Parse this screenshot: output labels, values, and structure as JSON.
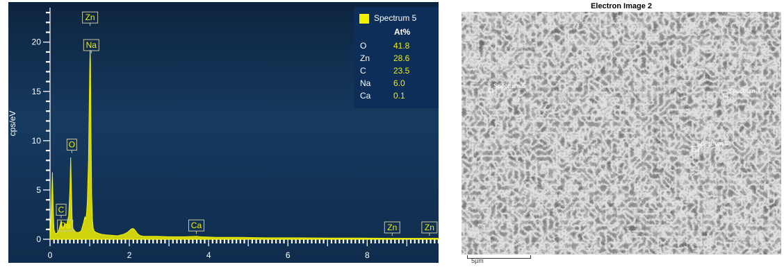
{
  "chart_data": [
    {
      "type": "line",
      "title": "",
      "xlabel": "",
      "ylabel": "cps/eV",
      "xlim": [
        0,
        9.8
      ],
      "ylim": [
        0,
        23.5
      ],
      "x_ticks": [
        0,
        2,
        4,
        6,
        8
      ],
      "y_ticks": [
        0,
        5,
        10,
        15,
        20
      ],
      "grid": false,
      "legend_position": "top-right",
      "series": [
        {
          "name": "Spectrum 5",
          "color": "#f0f000",
          "x": [
            0.0,
            0.03,
            0.06,
            0.08,
            0.1,
            0.13,
            0.17,
            0.22,
            0.26,
            0.28,
            0.3,
            0.33,
            0.37,
            0.42,
            0.47,
            0.5,
            0.52,
            0.54,
            0.56,
            0.58,
            0.61,
            0.66,
            0.72,
            0.78,
            0.84,
            0.88,
            0.9,
            0.92,
            0.94,
            0.97,
            1.0,
            1.01,
            1.02,
            1.035,
            1.05,
            1.07,
            1.09,
            1.12,
            1.16,
            1.22,
            1.3,
            1.4,
            1.55,
            1.7,
            1.85,
            1.95,
            2.05,
            2.1,
            2.15,
            2.2,
            2.26,
            2.35,
            2.5,
            2.7,
            3.0,
            3.4,
            3.69,
            3.8,
            4.2,
            4.8,
            5.5,
            6.2,
            7.0,
            7.8,
            8.6,
            9.2,
            9.8
          ],
          "y": [
            0.0,
            3.0,
            6.8,
            3.0,
            1.0,
            0.6,
            0.6,
            0.9,
            1.5,
            1.9,
            1.4,
            1.1,
            1.6,
            1.5,
            2.4,
            5.0,
            8.3,
            5.0,
            1.8,
            1.1,
            0.9,
            0.7,
            0.7,
            0.8,
            1.6,
            2.3,
            2.0,
            2.6,
            3.8,
            8.0,
            17.0,
            19.2,
            18.0,
            10.5,
            4.5,
            2.0,
            1.1,
            0.8,
            0.7,
            0.6,
            0.5,
            0.45,
            0.4,
            0.35,
            0.5,
            0.7,
            1.05,
            1.1,
            0.9,
            0.6,
            0.4,
            0.3,
            0.3,
            0.3,
            0.25,
            0.25,
            0.3,
            0.25,
            0.2,
            0.2,
            0.15,
            0.15,
            0.12,
            0.12,
            0.1,
            0.1,
            0.1
          ]
        }
      ],
      "peak_labels": [
        {
          "text": "Zn",
          "x": 1.01,
          "y": 22.5
        },
        {
          "text": "Na",
          "x": 1.04,
          "y": 19.7
        },
        {
          "text": "O",
          "x": 0.55,
          "y": 9.6
        },
        {
          "text": "C",
          "x": 0.28,
          "y": 3.0
        },
        {
          "text": "Ca",
          "x": 0.38,
          "y": 1.4
        },
        {
          "text": "Ca",
          "x": 3.69,
          "y": 1.4
        },
        {
          "text": "Zn",
          "x": 8.63,
          "y": 1.2
        },
        {
          "text": "Zn",
          "x": 9.57,
          "y": 1.2
        }
      ]
    }
  ],
  "legend": {
    "title": "Spectrum 5",
    "header": "At%",
    "rows": [
      {
        "element": "O",
        "value": "41.8"
      },
      {
        "element": "Zn",
        "value": "28.6"
      },
      {
        "element": "C",
        "value": "23.5"
      },
      {
        "element": "Na",
        "value": "6.0"
      },
      {
        "element": "Ca",
        "value": "0.1"
      }
    ]
  },
  "image_panel": {
    "title": "Electron Image 2",
    "markers": [
      {
        "label": "Spectrum 5"
      },
      {
        "label": "Spectrum 7"
      },
      {
        "label": "Spectrum 9"
      }
    ],
    "scale_bar": "5µm"
  },
  "colors": {
    "spectrum": "#f0f000",
    "panel_bg": "#153a5e",
    "legend_bg": "#0d2e59",
    "label_box": "#c8c8a0"
  }
}
